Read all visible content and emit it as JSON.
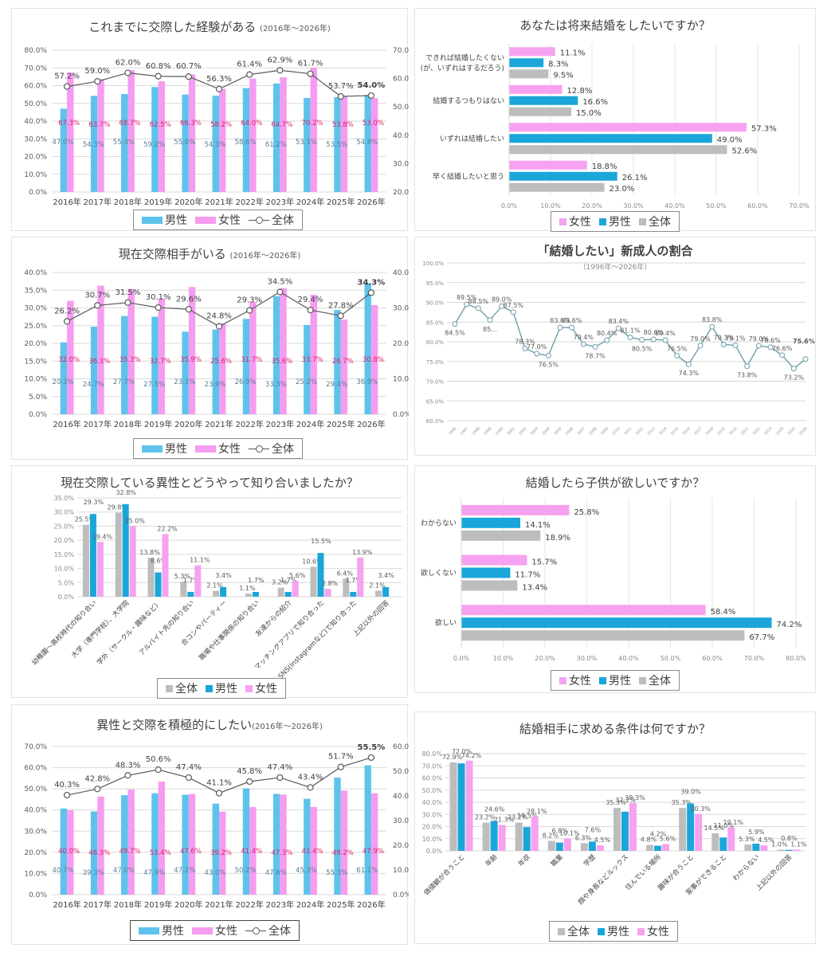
{
  "colors": {
    "male_light": "#5EC3EC",
    "female_light": "#F59CF0",
    "male": "#1AA6D9",
    "female": "#F6A2F0",
    "total": "#BDBDBD",
    "line": "#595959",
    "line_teal": "#6E9DAA",
    "female_label": "#E0206A",
    "grid": "#D9D9D9"
  },
  "legend_labels": {
    "male": "男性",
    "female": "女性",
    "total": "全体"
  },
  "chart_data": [
    {
      "id": "experience",
      "type": "bar",
      "title": "これまでに交際した経験がある",
      "subtitle": "(2016年～2026年)",
      "categories": [
        "2016年",
        "2017年",
        "2018年",
        "2019年",
        "2020年",
        "2021年",
        "2022年",
        "2023年",
        "2024年",
        "2025年",
        "2026年"
      ],
      "series": [
        {
          "name": "男性",
          "key": "male",
          "axis": "left",
          "values": [
            47.0,
            54.3,
            55.3,
            59.2,
            55.0,
            54.3,
            58.6,
            61.2,
            53.1,
            53.5,
            54.8
          ]
        },
        {
          "name": "女性",
          "key": "female",
          "axis": "left",
          "values": [
            67.3,
            63.7,
            68.7,
            62.5,
            66.3,
            58.2,
            64.0,
            64.7,
            70.2,
            53.8,
            53.0
          ]
        },
        {
          "name": "全体",
          "key": "total",
          "type": "line",
          "axis": "right",
          "values": [
            57.2,
            59.0,
            62.0,
            60.8,
            60.7,
            56.3,
            61.4,
            62.9,
            61.7,
            53.7,
            54.0
          ]
        }
      ],
      "ylim": [
        0,
        80
      ],
      "yticks": [
        "0.0%",
        "10.0%",
        "20.0%",
        "30.0%",
        "40.0%",
        "50.0%",
        "60.0%",
        "70.0%",
        "80.0%"
      ],
      "y2lim": [
        20,
        70
      ],
      "y2ticks": [
        "20.0%",
        "30.0%",
        "40.0%",
        "50.0%",
        "60.0%",
        "70.0%"
      ],
      "legend": "bottom",
      "grid": true
    },
    {
      "id": "future-marriage",
      "type": "bar",
      "orientation": "horizontal",
      "title": "あなたは将来結婚をしたいですか？",
      "categories": [
        "できれば結婚したくない\n(が、いずれはするだろう)",
        "結婚するつもりはない",
        "いずれは結婚したい",
        "早く結婚したいと思う"
      ],
      "series": [
        {
          "name": "女性",
          "key": "female",
          "values": [
            11.1,
            12.8,
            57.3,
            18.8
          ]
        },
        {
          "name": "男性",
          "key": "male",
          "values": [
            8.3,
            16.6,
            49.0,
            26.1
          ]
        },
        {
          "name": "全体",
          "key": "total",
          "values": [
            9.5,
            15.0,
            52.6,
            23.0
          ]
        }
      ],
      "xlim": [
        0,
        70
      ],
      "xticks": [
        "0.0%",
        "10.0%",
        "20.0%",
        "30.0%",
        "40.0%",
        "50.0%",
        "60.0%",
        "70.0%"
      ],
      "legend": "bottom",
      "grid": true
    },
    {
      "id": "current-partner",
      "type": "bar",
      "title": "現在交際相手がいる",
      "subtitle": "(2016年～2026年)",
      "categories": [
        "2016年",
        "2017年",
        "2018年",
        "2019年",
        "2020年",
        "2021年",
        "2022年",
        "2023年",
        "2024年",
        "2025年",
        "2026年"
      ],
      "series": [
        {
          "name": "男性",
          "key": "male",
          "axis": "left",
          "values": [
            20.3,
            24.7,
            27.7,
            27.5,
            23.3,
            23.9,
            26.9,
            33.3,
            25.2,
            29.4,
            36.9
          ]
        },
        {
          "name": "女性",
          "key": "female",
          "axis": "left",
          "values": [
            32.0,
            36.3,
            35.3,
            32.7,
            35.9,
            25.6,
            31.7,
            35.6,
            33.7,
            26.7,
            30.8
          ]
        },
        {
          "name": "全体",
          "key": "total",
          "type": "line",
          "axis": "right",
          "values": [
            26.2,
            30.7,
            31.5,
            30.1,
            29.6,
            24.8,
            29.3,
            34.5,
            29.4,
            27.8,
            34.3
          ]
        }
      ],
      "ylim": [
        0,
        40
      ],
      "yticks": [
        "0.0%",
        "5.0%",
        "10.0%",
        "15.0%",
        "20.0%",
        "25.0%",
        "30.0%",
        "35.0%",
        "40.0%"
      ],
      "y2lim": [
        0,
        40
      ],
      "y2ticks": [
        "0.0%",
        "10.0%",
        "20.0%",
        "30.0%",
        "40.0%"
      ],
      "legend": "bottom",
      "grid": true
    },
    {
      "id": "want-marry-rate",
      "type": "line",
      "title": "「結婚したい」新成人の割合",
      "subtitle": "（1996年～2026年）",
      "x": [
        "1996",
        "1997",
        "1998",
        "1999",
        "2000",
        "2001",
        "2002",
        "2003",
        "2004",
        "2005",
        "2006",
        "2007",
        "2008",
        "2009",
        "2010",
        "2011",
        "2012",
        "2013",
        "2014",
        "2015",
        "2016",
        "2017",
        "2018",
        "2019",
        "2020",
        "2021",
        "2022",
        "2023",
        "2024",
        "2025",
        "2026"
      ],
      "values": [
        84.5,
        89.5,
        88.5,
        85.5,
        89.0,
        87.5,
        78.3,
        77.0,
        76.5,
        83.6,
        83.6,
        79.4,
        78.7,
        80.4,
        83.4,
        81.1,
        80.5,
        80.6,
        80.4,
        76.5,
        74.3,
        79.0,
        83.8,
        79.3,
        79.1,
        73.8,
        79.0,
        78.6,
        76.6,
        73.2,
        75.6
      ],
      "labels": [
        "84.5%",
        "89.5%",
        "88.5%",
        "85...",
        "89.0%",
        "87.5%",
        "78.3%",
        "77.0%",
        "76.5%",
        "83.6%",
        "83.6%",
        "79.4%",
        "78.7%",
        "80.4%",
        "83.4%",
        "81.1%",
        "80.5%",
        "80.6%",
        "80.4%",
        "76.5%",
        "74.3%",
        "79.0%",
        "83.8%",
        "79.3%",
        "79.1%",
        "73.8%",
        "79.0%",
        "78.6%",
        "76.6%",
        "73.2%",
        "75.6%"
      ],
      "ylim": [
        60,
        100
      ],
      "yticks": [
        "60.0%",
        "65.0%",
        "70.0%",
        "75.0%",
        "80.0%",
        "85.0%",
        "90.0%",
        "95.0%",
        "100.0%"
      ],
      "grid": true
    },
    {
      "id": "how-met",
      "type": "bar",
      "title": "現在交際している異性とどうやって知り合いましたか？",
      "categories": [
        "幼稚園～高校時代の知り合い",
        "大学（専門学校）、大学院",
        "学外（サークル・趣味など）",
        "アルバイト先の知り合い",
        "合コンやパーティー",
        "職場や仕事関係の知り合い",
        "友達からの紹介",
        "マッチングアプリで知り合った",
        "SNS(Instagramなど)で知り合った",
        "上記以外の回答"
      ],
      "series": [
        {
          "name": "全体",
          "key": "total",
          "values": [
            25.5,
            29.8,
            13.8,
            5.3,
            2.1,
            1.1,
            3.2,
            10.6,
            6.4,
            2.1
          ],
          "labels": [
            "25.5%",
            "29.8%",
            "13.8%",
            "5.3%",
            "2.1%",
            "1.1%",
            "3.2%",
            "10.6%",
            "6.4%",
            "2.1%"
          ]
        },
        {
          "name": "男性",
          "key": "male",
          "values": [
            29.3,
            32.8,
            8.6,
            1.7,
            3.4,
            1.7,
            1.7,
            15.5,
            1.7,
            3.4
          ],
          "labels": [
            "29.3%",
            "32.8%",
            "8.6%",
            "1.7%",
            "3.4%",
            "1.7%",
            "1.7%",
            "15.5%",
            "1.7%",
            "3.4%"
          ]
        },
        {
          "name": "女性",
          "key": "female",
          "values": [
            19.4,
            25.0,
            22.2,
            11.1,
            0,
            0,
            5.6,
            2.8,
            13.9,
            0
          ],
          "labels": [
            "19.4%",
            "25.0%",
            "22.2%",
            "11.1%",
            "",
            "",
            "5.6%",
            "2.8%",
            "13.9%",
            ""
          ]
        }
      ],
      "ylim": [
        0,
        35
      ],
      "yticks": [
        "0.0%",
        "5.0%",
        "10.0%",
        "15.0%",
        "20.0%",
        "25.0%",
        "30.0%",
        "35.0%"
      ],
      "legend": "bottom",
      "grid": true
    },
    {
      "id": "want-children",
      "type": "bar",
      "orientation": "horizontal",
      "title": "結婚したら子供が欲しいですか？",
      "categories": [
        "わからない",
        "欲しくない",
        "欲しい"
      ],
      "series": [
        {
          "name": "女性",
          "key": "female",
          "values": [
            25.8,
            15.7,
            58.4
          ]
        },
        {
          "name": "男性",
          "key": "male",
          "values": [
            14.1,
            11.7,
            74.2
          ]
        },
        {
          "name": "全体",
          "key": "total",
          "values": [
            18.9,
            13.4,
            67.7
          ]
        }
      ],
      "xlim": [
        0,
        80
      ],
      "xticks": [
        "0.0%",
        "10.0%",
        "20.0%",
        "30.0%",
        "40.0%",
        "50.0%",
        "60.0%",
        "70.0%",
        "80.0%"
      ],
      "legend": "bottom",
      "grid": true
    },
    {
      "id": "active-dating",
      "type": "bar",
      "title": "異性と交際を積極的にしたい",
      "subtitle": "(2016年～2026年)",
      "categories": [
        "2016年",
        "2017年",
        "2018年",
        "2019年",
        "2020年",
        "2021年",
        "2022年",
        "2023年",
        "2024年",
        "2025年",
        "2026年"
      ],
      "series": [
        {
          "name": "男性",
          "key": "male",
          "axis": "left",
          "values": [
            40.7,
            39.3,
            47.0,
            47.9,
            47.2,
            43.0,
            50.2,
            47.6,
            45.3,
            55.3,
            61.1
          ]
        },
        {
          "name": "女性",
          "key": "female",
          "axis": "left",
          "values": [
            40.0,
            46.3,
            49.7,
            53.4,
            47.6,
            39.2,
            41.4,
            47.3,
            41.4,
            49.2,
            47.9
          ]
        },
        {
          "name": "全体",
          "key": "total",
          "type": "line",
          "axis": "right",
          "values": [
            40.3,
            42.8,
            48.3,
            50.6,
            47.4,
            41.1,
            45.8,
            47.4,
            43.4,
            51.7,
            55.5
          ]
        }
      ],
      "ylim": [
        0,
        70
      ],
      "yticks": [
        "0.0%",
        "10.0%",
        "20.0%",
        "30.0%",
        "40.0%",
        "50.0%",
        "60.0%",
        "70.0%"
      ],
      "y2lim": [
        0,
        60
      ],
      "y2ticks": [
        "0.0%",
        "10.0%",
        "20.0%",
        "30.0%",
        "40.0%",
        "50.0%",
        "60.0%"
      ],
      "legend": "bottom",
      "grid": true
    },
    {
      "id": "partner-conditions",
      "type": "bar",
      "title": "結婚相手に求める条件は何ですか？",
      "categories": [
        "価値観が合うこと",
        "年齢",
        "年収",
        "職業",
        "学歴",
        "顔や身長などルックス",
        "住んでいる場所",
        "趣味が合うこと",
        "家事ができること",
        "わからない",
        "上記以外の回答"
      ],
      "series": [
        {
          "name": "全体",
          "key": "total",
          "values": [
            72.9,
            23.2,
            23.2,
            8.2,
            6.3,
            35.3,
            4.8,
            35.3,
            14.5,
            5.3,
            1.0
          ]
        },
        {
          "name": "男性",
          "key": "male",
          "values": [
            72.0,
            24.6,
            19.5,
            6.8,
            7.6,
            32.2,
            4.2,
            39.0,
            11.0,
            5.9,
            0.8
          ]
        },
        {
          "name": "女性",
          "key": "female",
          "values": [
            74.2,
            21.3,
            28.1,
            10.1,
            4.5,
            39.3,
            5.6,
            30.3,
            19.1,
            4.5,
            1.1
          ]
        }
      ],
      "ylim": [
        0,
        80
      ],
      "yticks": [
        "0.0%",
        "10.0%",
        "20.0%",
        "30.0%",
        "40.0%",
        "50.0%",
        "60.0%",
        "70.0%",
        "80.0%"
      ],
      "legend": "bottom",
      "grid": true
    }
  ]
}
